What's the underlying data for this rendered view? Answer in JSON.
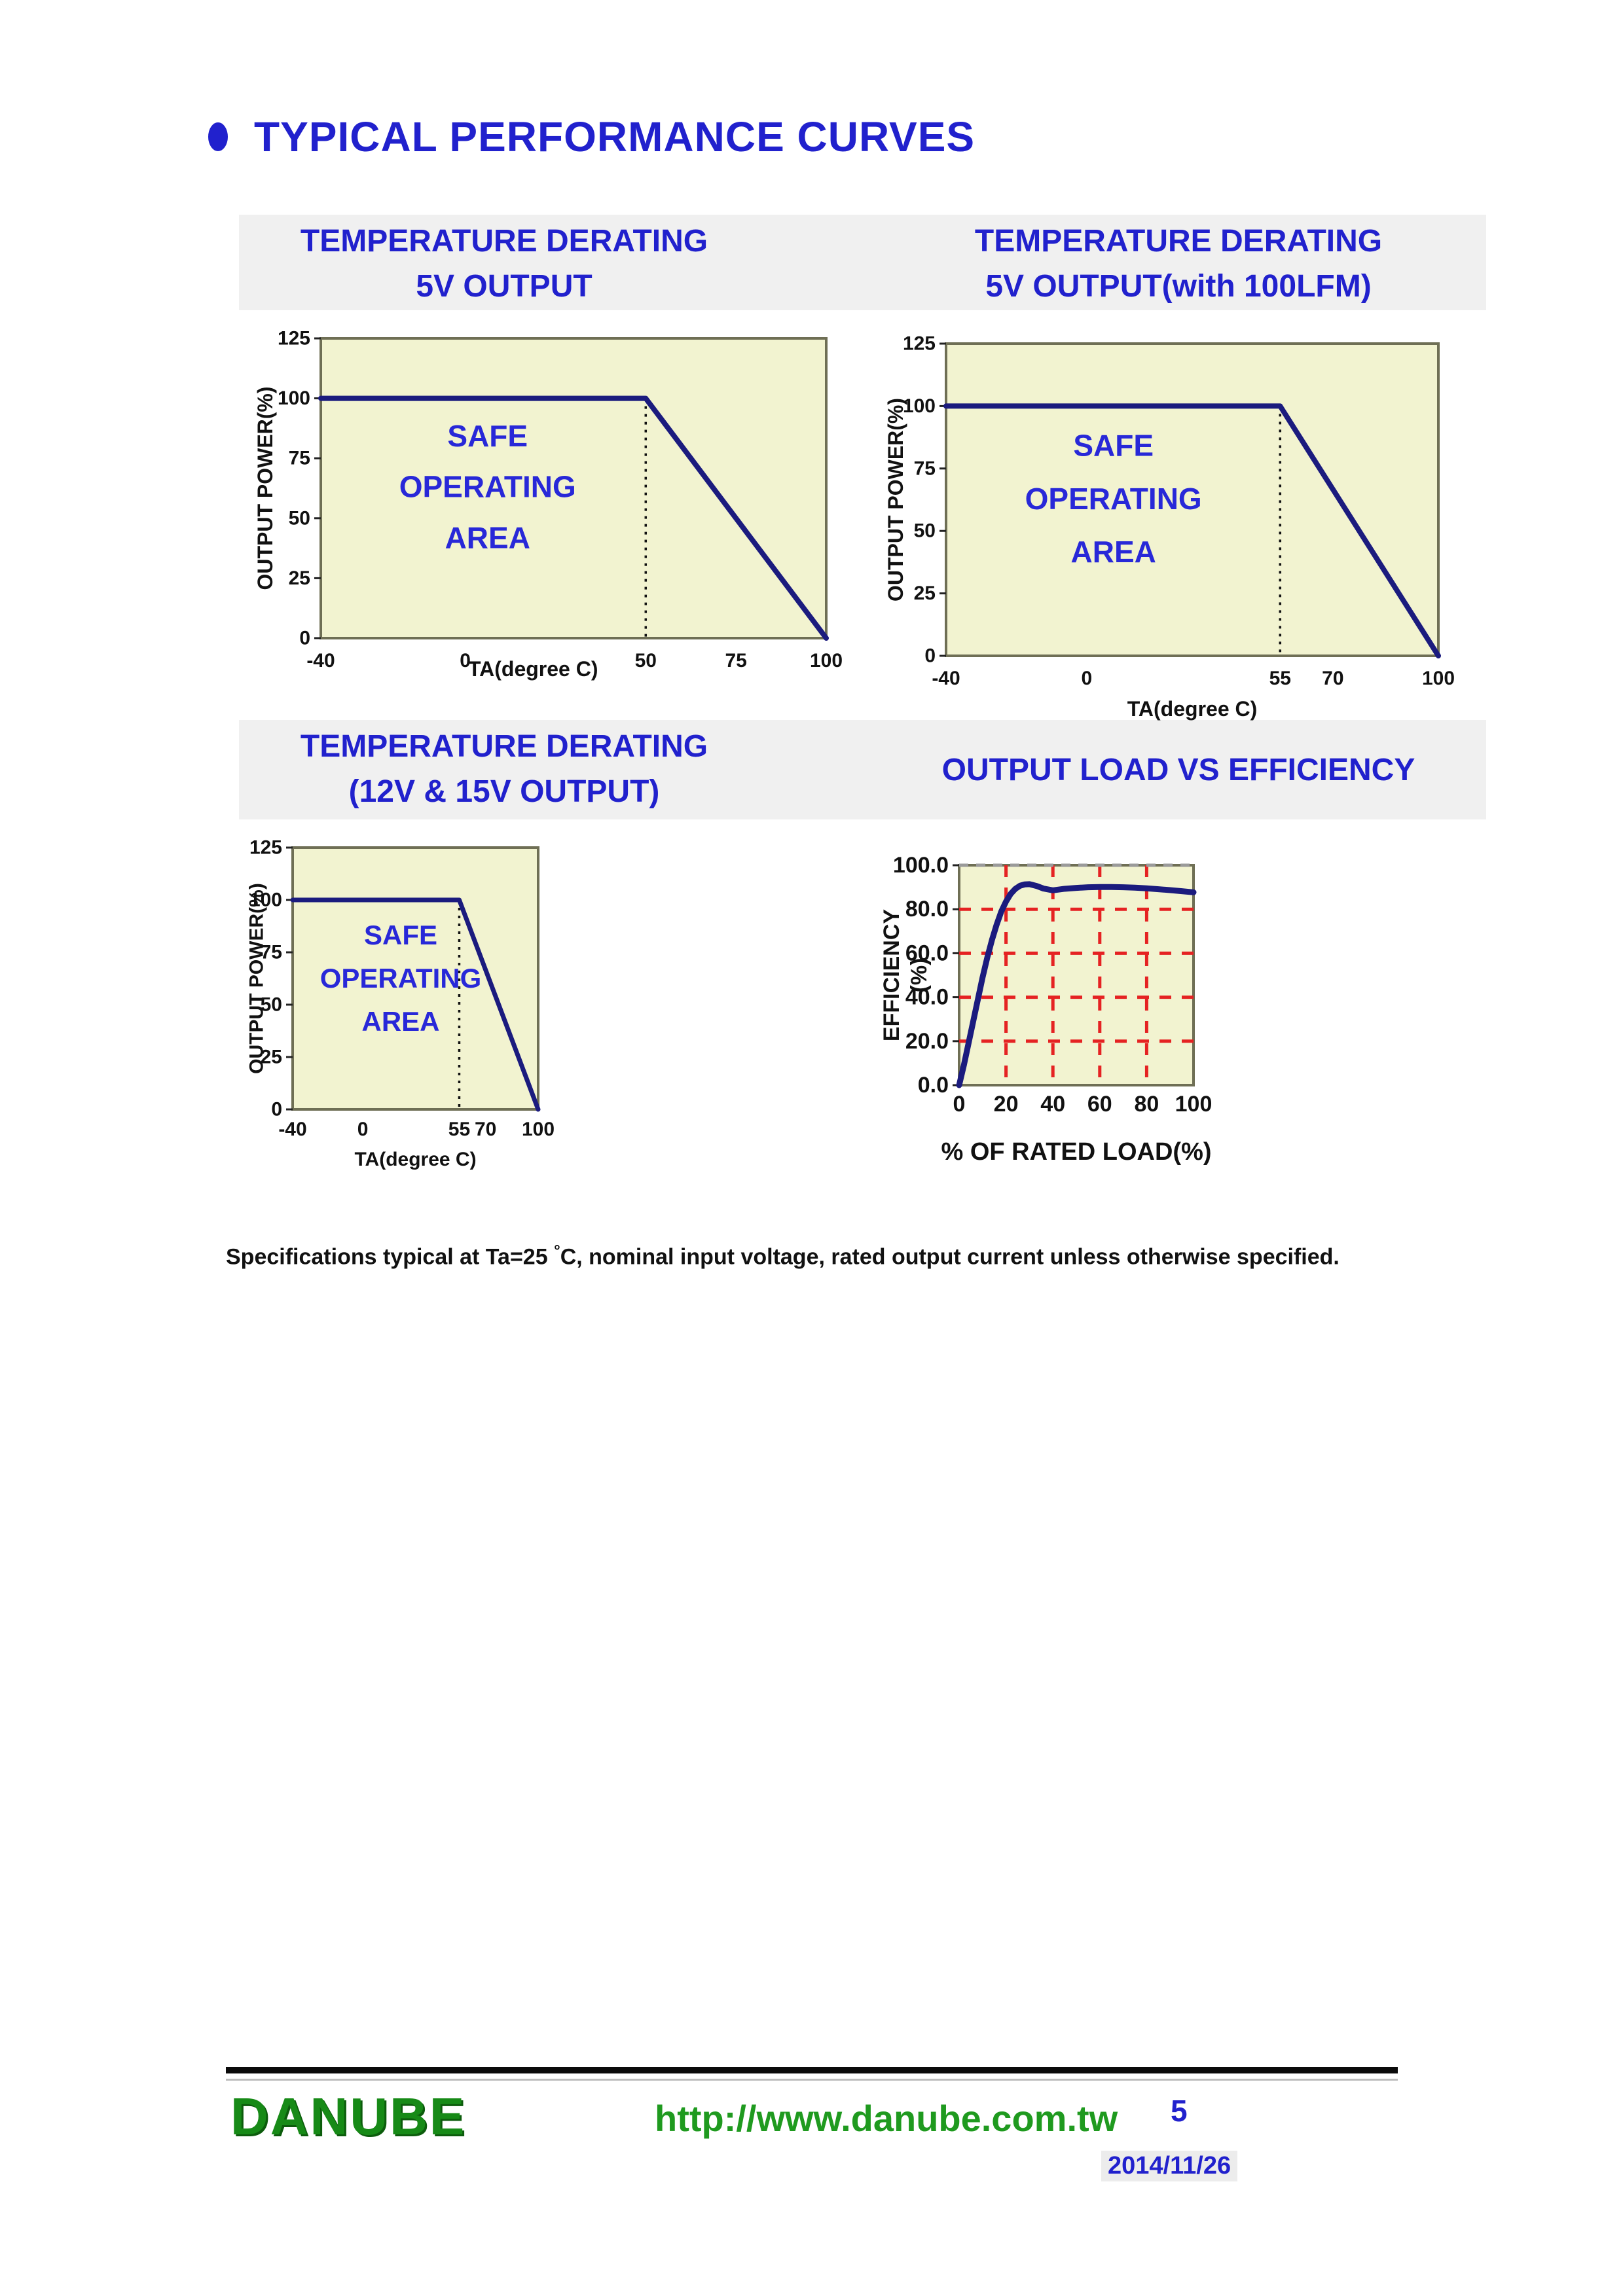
{
  "page": {
    "title": "TYPICAL PERFORMANCE CURVES",
    "note": {
      "prefix": "Specifications typical at Ta=25 ",
      "degree": "°",
      "suffix": "C, nominal input voltage, rated output current unless otherwise specified."
    }
  },
  "panels": {
    "row1_left": {
      "line1": "TEMPERATURE DERATING",
      "line2": "5V OUTPUT"
    },
    "row1_right": {
      "line1": "TEMPERATURE DERATING",
      "line2": "5V OUTPUT(with 100LFM)"
    },
    "row2_left": {
      "line1": "TEMPERATURE DERATING",
      "line2": "(12V & 15V OUTPUT)"
    },
    "row2_right": {
      "line1": "OUTPUT LOAD VS EFFICIENCY"
    }
  },
  "chart_data": [
    {
      "type": "line",
      "title": "TEMPERATURE DERATING 5V OUTPUT",
      "xlabel": "TA(degree C)",
      "ylabel": "OUTPUT POWER(%)",
      "xlim": [
        -40,
        100
      ],
      "ylim": [
        0,
        125
      ],
      "xticks": [
        -40,
        0,
        50,
        75,
        100
      ],
      "yticks": [
        0,
        25,
        50,
        75,
        100,
        125
      ],
      "vline_dotted_x": 50,
      "annotation": [
        "SAFE",
        "OPERATING",
        "AREA"
      ],
      "legend": "none",
      "grid": null,
      "series": [
        {
          "name": "derating-boundary",
          "x": [
            -40,
            50,
            100
          ],
          "y": [
            100,
            100,
            0
          ]
        }
      ]
    },
    {
      "type": "line",
      "title": "TEMPERATURE DERATING 5V OUTPUT(with 100LFM)",
      "xlabel": "TA(degree C)",
      "ylabel": "OUTPUT POWER(%)",
      "xlim": [
        -40,
        100
      ],
      "ylim": [
        0,
        125
      ],
      "xticks": [
        -40,
        0,
        55,
        70,
        100
      ],
      "yticks": [
        0,
        25,
        50,
        75,
        100,
        125
      ],
      "vline_dotted_x": 55,
      "annotation": [
        "SAFE",
        "OPERATING",
        "AREA"
      ],
      "legend": "none",
      "grid": null,
      "series": [
        {
          "name": "derating-boundary",
          "x": [
            -40,
            55,
            100
          ],
          "y": [
            100,
            100,
            0
          ]
        }
      ]
    },
    {
      "type": "line",
      "title": "TEMPERATURE DERATING (12V & 15V OUTPUT)",
      "xlabel": "TA(degree C)",
      "ylabel": "OUTPUT POWER(%)",
      "xlim": [
        -40,
        100
      ],
      "ylim": [
        0,
        125
      ],
      "xticks": [
        -40,
        0,
        55,
        70,
        100
      ],
      "yticks": [
        0,
        25,
        50,
        75,
        100,
        125
      ],
      "vline_dotted_x": 55,
      "annotation": [
        "SAFE",
        "OPERATING",
        "AREA"
      ],
      "legend": "none",
      "grid": null,
      "series": [
        {
          "name": "derating-boundary",
          "x": [
            -40,
            55,
            100
          ],
          "y": [
            100,
            100,
            0
          ]
        }
      ]
    },
    {
      "type": "line",
      "title": "OUTPUT LOAD VS EFFICIENCY",
      "xlabel": "% OF RATED LOAD(%)",
      "ylabel": "EFFICIENCY (%)",
      "ylabel_lines": [
        "EFFICIENCY",
        "(%)"
      ],
      "xlim": [
        0,
        100
      ],
      "ylim": [
        0,
        100
      ],
      "xticks": [
        0,
        20,
        40,
        60,
        80,
        100
      ],
      "ytick_labels": [
        "0.0",
        "20.0",
        "40.0",
        "60.0",
        "80.0",
        "100.0"
      ],
      "legend": "none",
      "grid": {
        "x": [
          20,
          40,
          60,
          80
        ],
        "y": [
          20,
          40,
          60,
          80
        ],
        "style": "red-dashed",
        "top_dashed_y": 100
      },
      "series": [
        {
          "name": "efficiency",
          "x": [
            0,
            2,
            4,
            6,
            8,
            10,
            12,
            14,
            16,
            18,
            20,
            22,
            24,
            26,
            28,
            30,
            33,
            36,
            40,
            45,
            50,
            55,
            60,
            65,
            70,
            75,
            80,
            85,
            90,
            95,
            100
          ],
          "y": [
            0,
            9,
            19,
            29,
            39,
            49,
            58,
            66,
            73,
            79,
            83.5,
            87,
            89.3,
            90.7,
            91.3,
            91.4,
            90.6,
            89.4,
            88.6,
            89.3,
            89.7,
            90,
            90.1,
            90.1,
            90,
            89.8,
            89.5,
            89.1,
            88.7,
            88.2,
            87.7
          ]
        }
      ]
    }
  ],
  "footer": {
    "brand": "DANUBE",
    "url": "http://www.danube.com.tw",
    "page_number": "5",
    "date": "2014/11/26"
  },
  "colors": {
    "accent_blue": "#2121cd",
    "annotation_blue": "#2828d8",
    "band_gray": "#f0f0f0",
    "plot_bg": "#f2f3d0",
    "plot_border": "#6f6f55",
    "line_navy": "#1b1b7e",
    "grid_red": "#e52222",
    "grid_gray": "#9a9a9a",
    "green": "#178a17"
  }
}
